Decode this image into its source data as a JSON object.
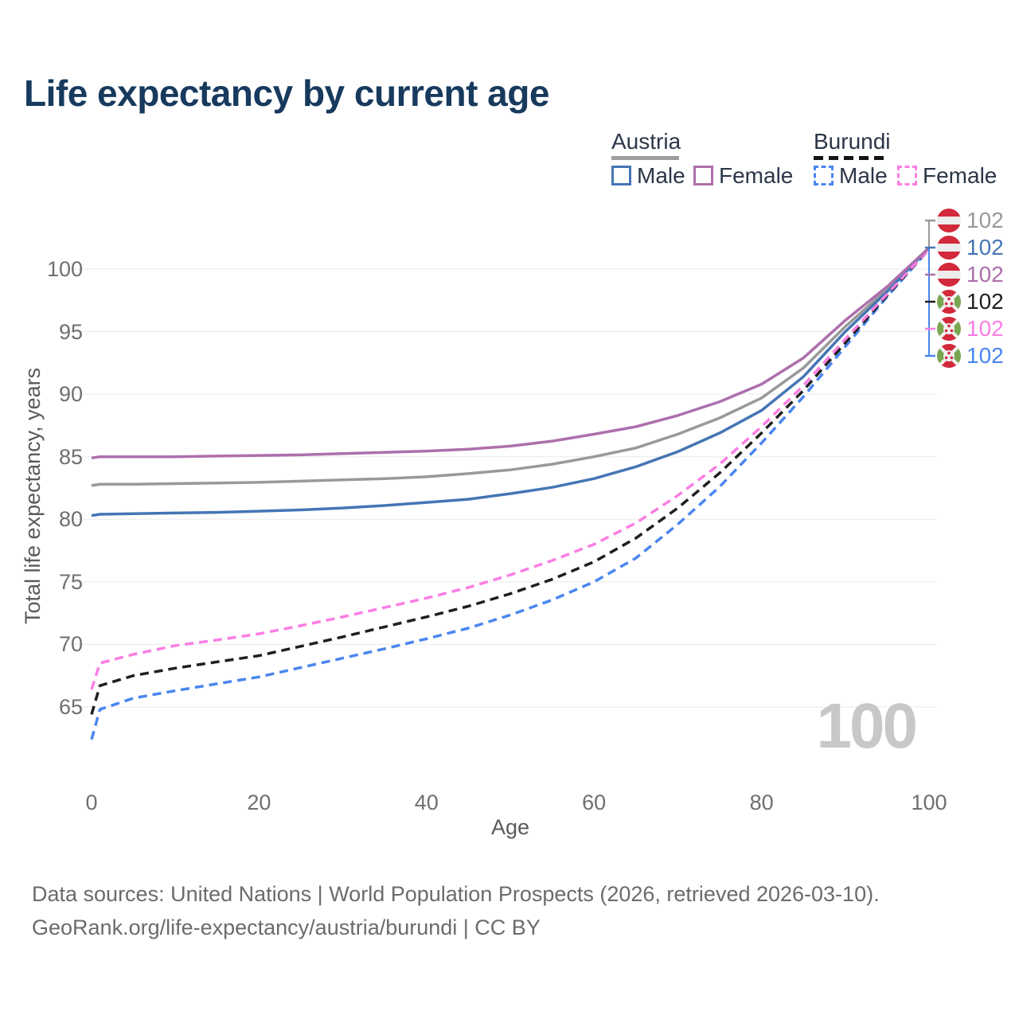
{
  "title": "Life expectancy by current age",
  "legend": {
    "groups": [
      {
        "label": "Austria",
        "line_style": "solid",
        "color": "#9e9e9e",
        "items": [
          {
            "label": "Male",
            "color": "#4575b4"
          },
          {
            "label": "Female",
            "color": "#ad6fad"
          }
        ]
      },
      {
        "label": "Burundi",
        "line_style": "dashed",
        "color": "#141414",
        "items": [
          {
            "label": "Male",
            "color": "#4a86f0"
          },
          {
            "label": "Female",
            "color": "#fb7ee3"
          }
        ]
      }
    ]
  },
  "end_labels": [
    {
      "country": "austria",
      "series": "Austria Total",
      "value": "102",
      "color": "#999999"
    },
    {
      "country": "austria",
      "series": "Austria Male",
      "value": "102",
      "color": "#4575b4"
    },
    {
      "country": "austria",
      "series": "Austria Female",
      "value": "102",
      "color": "#ad6fad"
    },
    {
      "country": "burundi",
      "series": "Burundi Total",
      "value": "102",
      "color": "#1f1f1f"
    },
    {
      "country": "burundi",
      "series": "Burundi Female",
      "value": "102",
      "color": "#fb7ee3"
    },
    {
      "country": "burundi",
      "series": "Burundi Male",
      "value": "102",
      "color": "#4a86f0"
    }
  ],
  "watermark": "100",
  "footer": {
    "line1": "Data sources: United Nations | World Population Prospects (2026, retrieved 2026-03-10).",
    "line2": "GeoRank.org/life-expectancy/austria/burundi | CC BY"
  },
  "chart_data": {
    "type": "line",
    "title": "Life expectancy by current age",
    "xlabel": "Age",
    "ylabel": "Total life expectancy, years",
    "xlim": [
      0,
      100
    ],
    "ylim": [
      62,
      103
    ],
    "x_ticks": [
      0,
      20,
      40,
      60,
      80,
      100
    ],
    "y_ticks": [
      100,
      95,
      90,
      85,
      80,
      75,
      70,
      65
    ],
    "grid": "horizontal",
    "legend_position": "top-right",
    "x": [
      0,
      1,
      5,
      10,
      15,
      20,
      25,
      30,
      35,
      40,
      45,
      50,
      55,
      60,
      65,
      70,
      75,
      80,
      85,
      90,
      95,
      100
    ],
    "series": [
      {
        "name": "Austria Female",
        "color": "#ad6fad",
        "dashed": false,
        "values": [
          84.9,
          85.0,
          85.0,
          85.0,
          85.05,
          85.1,
          85.15,
          85.25,
          85.35,
          85.45,
          85.6,
          85.85,
          86.25,
          86.8,
          87.4,
          88.3,
          89.4,
          90.8,
          92.9,
          95.9,
          98.6,
          101.7
        ]
      },
      {
        "name": "Austria Total",
        "color": "#999999",
        "dashed": false,
        "values": [
          82.7,
          82.8,
          82.8,
          82.85,
          82.9,
          82.95,
          83.05,
          83.15,
          83.25,
          83.4,
          83.65,
          83.95,
          84.4,
          85.0,
          85.7,
          86.8,
          88.1,
          89.7,
          92.1,
          95.4,
          98.4,
          101.7
        ]
      },
      {
        "name": "Austria Male",
        "color": "#4575b4",
        "dashed": false,
        "values": [
          80.3,
          80.4,
          80.45,
          80.5,
          80.55,
          80.65,
          80.75,
          80.9,
          81.1,
          81.35,
          81.6,
          82.05,
          82.55,
          83.25,
          84.2,
          85.4,
          86.9,
          88.7,
          91.4,
          95.0,
          98.2,
          101.7
        ]
      },
      {
        "name": "Burundi Female",
        "color": "#fb7ee3",
        "dashed": true,
        "values": [
          66.4,
          68.5,
          69.2,
          69.9,
          70.35,
          70.85,
          71.5,
          72.2,
          72.95,
          73.7,
          74.55,
          75.55,
          76.7,
          78.0,
          79.7,
          81.9,
          84.4,
          87.4,
          90.7,
          94.4,
          98.0,
          101.6
        ]
      },
      {
        "name": "Burundi Total",
        "color": "#1f1f1f",
        "dashed": true,
        "values": [
          64.4,
          66.7,
          67.5,
          68.1,
          68.6,
          69.1,
          69.85,
          70.6,
          71.4,
          72.2,
          73.05,
          74.05,
          75.2,
          76.6,
          78.5,
          80.9,
          83.7,
          86.9,
          90.3,
          94.1,
          97.9,
          101.6
        ]
      },
      {
        "name": "Burundi Male",
        "color": "#4a86f0",
        "dashed": true,
        "values": [
          62.4,
          64.8,
          65.7,
          66.3,
          66.85,
          67.4,
          68.15,
          68.9,
          69.65,
          70.45,
          71.3,
          72.35,
          73.55,
          75.0,
          76.9,
          79.6,
          82.6,
          86.1,
          89.8,
          93.8,
          97.8,
          101.6
        ]
      }
    ]
  }
}
